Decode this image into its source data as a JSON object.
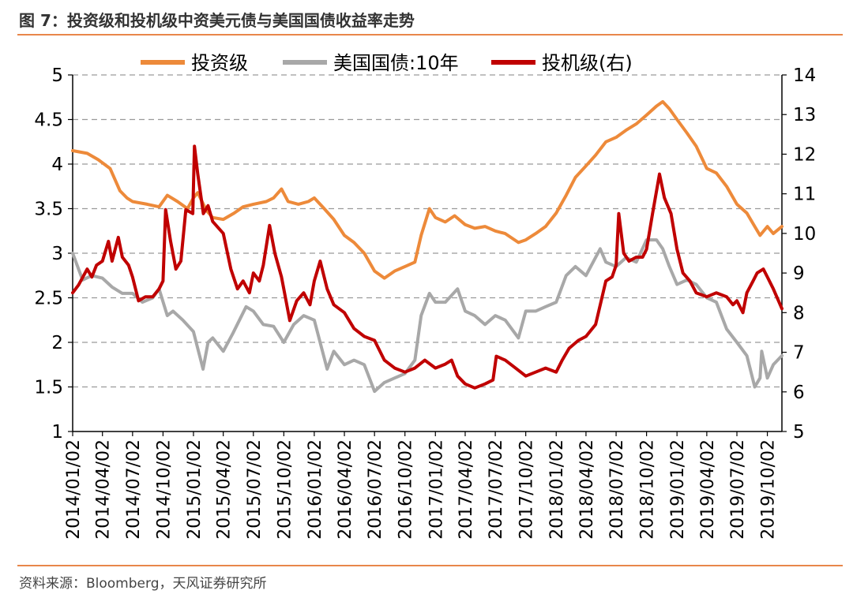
{
  "figure": {
    "title": "图 7：投资级和投机级中资美元债与美国国债收益率走势",
    "source": "资料来源：Bloomberg，天风证券研究所"
  },
  "colors": {
    "ig": "#ed8a3a",
    "ust": "#a8a8a8",
    "hy": "#c00000",
    "rule": "#e8874a",
    "grid": "#9a9a9a"
  },
  "chart_data": {
    "type": "line",
    "title": "投资级和投机级中资美元债与美国国债收益率走势",
    "legend": [
      "投资级",
      "美国国债:10年",
      "投机级(右)"
    ],
    "y_left": {
      "ylim": [
        1,
        5
      ],
      "ticks": [
        "1",
        "1.5",
        "2",
        "2.5",
        "3",
        "3.5",
        "4",
        "4.5",
        "5"
      ]
    },
    "y_right": {
      "ylim": [
        5,
        14
      ],
      "ticks": [
        "5",
        "6",
        "7",
        "8",
        "9",
        "10",
        "11",
        "12",
        "13",
        "14"
      ]
    },
    "x_start": "2014-01-02",
    "x_end": "2019-11-15",
    "x_ticks": [
      "2014/01/02",
      "2014/04/02",
      "2014/07/02",
      "2014/10/02",
      "2015/01/02",
      "2015/04/02",
      "2015/07/02",
      "2015/10/02",
      "2016/01/02",
      "2016/04/02",
      "2016/07/02",
      "2016/10/02",
      "2017/01/02",
      "2017/04/02",
      "2017/07/02",
      "2017/10/02",
      "2018/01/02",
      "2018/04/02",
      "2018/07/02",
      "2018/10/02",
      "2019/01/02",
      "2019/04/02",
      "2019/07/02",
      "2019/10/02"
    ],
    "series": [
      {
        "name": "投资级",
        "axis": "left",
        "color": "#ed8a3a",
        "points": [
          [
            "2014-01-02",
            4.15
          ],
          [
            "2014-02-15",
            4.12
          ],
          [
            "2014-03-20",
            4.05
          ],
          [
            "2014-04-25",
            3.95
          ],
          [
            "2014-05-25",
            3.7
          ],
          [
            "2014-06-15",
            3.62
          ],
          [
            "2014-07-02",
            3.58
          ],
          [
            "2014-08-15",
            3.55
          ],
          [
            "2014-09-20",
            3.52
          ],
          [
            "2014-10-15",
            3.65
          ],
          [
            "2014-11-15",
            3.58
          ],
          [
            "2014-12-15",
            3.5
          ],
          [
            "2015-01-02",
            3.62
          ],
          [
            "2015-01-15",
            3.68
          ],
          [
            "2015-02-10",
            3.48
          ],
          [
            "2015-03-01",
            3.4
          ],
          [
            "2015-04-02",
            3.38
          ],
          [
            "2015-05-05",
            3.45
          ],
          [
            "2015-06-01",
            3.52
          ],
          [
            "2015-07-02",
            3.55
          ],
          [
            "2015-08-10",
            3.58
          ],
          [
            "2015-09-01",
            3.62
          ],
          [
            "2015-09-25",
            3.72
          ],
          [
            "2015-10-15",
            3.58
          ],
          [
            "2015-11-15",
            3.55
          ],
          [
            "2015-12-15",
            3.58
          ],
          [
            "2016-01-02",
            3.62
          ],
          [
            "2016-02-01",
            3.5
          ],
          [
            "2016-03-01",
            3.38
          ],
          [
            "2016-04-02",
            3.2
          ],
          [
            "2016-05-01",
            3.12
          ],
          [
            "2016-06-01",
            3.0
          ],
          [
            "2016-07-02",
            2.8
          ],
          [
            "2016-08-01",
            2.72
          ],
          [
            "2016-09-01",
            2.8
          ],
          [
            "2016-10-02",
            2.85
          ],
          [
            "2016-11-01",
            2.9
          ],
          [
            "2016-11-20",
            3.2
          ],
          [
            "2016-12-15",
            3.5
          ],
          [
            "2017-01-02",
            3.4
          ],
          [
            "2017-02-01",
            3.35
          ],
          [
            "2017-03-01",
            3.42
          ],
          [
            "2017-04-02",
            3.32
          ],
          [
            "2017-05-01",
            3.28
          ],
          [
            "2017-06-01",
            3.3
          ],
          [
            "2017-07-02",
            3.25
          ],
          [
            "2017-08-01",
            3.22
          ],
          [
            "2017-09-10",
            3.12
          ],
          [
            "2017-10-02",
            3.15
          ],
          [
            "2017-11-01",
            3.22
          ],
          [
            "2017-12-01",
            3.3
          ],
          [
            "2018-01-02",
            3.45
          ],
          [
            "2018-02-01",
            3.65
          ],
          [
            "2018-03-01",
            3.85
          ],
          [
            "2018-04-02",
            3.98
          ],
          [
            "2018-05-01",
            4.1
          ],
          [
            "2018-06-01",
            4.25
          ],
          [
            "2018-07-02",
            4.3
          ],
          [
            "2018-08-01",
            4.38
          ],
          [
            "2018-09-01",
            4.45
          ],
          [
            "2018-10-02",
            4.55
          ],
          [
            "2018-11-01",
            4.65
          ],
          [
            "2018-11-20",
            4.7
          ],
          [
            "2018-12-10",
            4.62
          ],
          [
            "2019-01-02",
            4.5
          ],
          [
            "2019-02-01",
            4.35
          ],
          [
            "2019-03-01",
            4.2
          ],
          [
            "2019-04-02",
            3.95
          ],
          [
            "2019-05-01",
            3.9
          ],
          [
            "2019-06-01",
            3.75
          ],
          [
            "2019-07-02",
            3.55
          ],
          [
            "2019-08-01",
            3.45
          ],
          [
            "2019-08-25",
            3.3
          ],
          [
            "2019-09-10",
            3.2
          ],
          [
            "2019-10-02",
            3.3
          ],
          [
            "2019-10-20",
            3.22
          ],
          [
            "2019-11-15",
            3.3
          ]
        ]
      },
      {
        "name": "美国国债:10年",
        "axis": "left",
        "color": "#a8a8a8",
        "points": [
          [
            "2014-01-02",
            3.0
          ],
          [
            "2014-02-01",
            2.7
          ],
          [
            "2014-03-01",
            2.75
          ],
          [
            "2014-04-02",
            2.72
          ],
          [
            "2014-05-01",
            2.62
          ],
          [
            "2014-06-01",
            2.55
          ],
          [
            "2014-07-02",
            2.55
          ],
          [
            "2014-08-01",
            2.45
          ],
          [
            "2014-09-01",
            2.5
          ],
          [
            "2014-09-20",
            2.6
          ],
          [
            "2014-10-15",
            2.3
          ],
          [
            "2014-11-01",
            2.35
          ],
          [
            "2014-12-01",
            2.25
          ],
          [
            "2015-01-02",
            2.12
          ],
          [
            "2015-01-31",
            1.7
          ],
          [
            "2015-02-15",
            2.0
          ],
          [
            "2015-03-01",
            2.05
          ],
          [
            "2015-04-02",
            1.9
          ],
          [
            "2015-05-01",
            2.1
          ],
          [
            "2015-06-10",
            2.4
          ],
          [
            "2015-07-02",
            2.35
          ],
          [
            "2015-08-01",
            2.2
          ],
          [
            "2015-09-01",
            2.18
          ],
          [
            "2015-10-02",
            2.0
          ],
          [
            "2015-11-01",
            2.2
          ],
          [
            "2015-12-01",
            2.3
          ],
          [
            "2016-01-02",
            2.25
          ],
          [
            "2016-02-10",
            1.7
          ],
          [
            "2016-03-01",
            1.9
          ],
          [
            "2016-04-02",
            1.75
          ],
          [
            "2016-05-01",
            1.8
          ],
          [
            "2016-06-01",
            1.75
          ],
          [
            "2016-07-02",
            1.45
          ],
          [
            "2016-08-01",
            1.55
          ],
          [
            "2016-09-01",
            1.6
          ],
          [
            "2016-10-02",
            1.65
          ],
          [
            "2016-11-01",
            1.8
          ],
          [
            "2016-11-20",
            2.3
          ],
          [
            "2016-12-15",
            2.55
          ],
          [
            "2017-01-02",
            2.45
          ],
          [
            "2017-02-01",
            2.45
          ],
          [
            "2017-03-10",
            2.6
          ],
          [
            "2017-04-02",
            2.35
          ],
          [
            "2017-05-01",
            2.3
          ],
          [
            "2017-06-01",
            2.2
          ],
          [
            "2017-07-02",
            2.3
          ],
          [
            "2017-08-01",
            2.25
          ],
          [
            "2017-09-10",
            2.05
          ],
          [
            "2017-10-02",
            2.35
          ],
          [
            "2017-11-01",
            2.35
          ],
          [
            "2017-12-01",
            2.4
          ],
          [
            "2018-01-02",
            2.45
          ],
          [
            "2018-02-01",
            2.75
          ],
          [
            "2018-03-01",
            2.85
          ],
          [
            "2018-04-02",
            2.75
          ],
          [
            "2018-05-15",
            3.05
          ],
          [
            "2018-06-01",
            2.9
          ],
          [
            "2018-07-02",
            2.85
          ],
          [
            "2018-08-01",
            2.95
          ],
          [
            "2018-09-01",
            2.9
          ],
          [
            "2018-10-02",
            3.15
          ],
          [
            "2018-11-01",
            3.15
          ],
          [
            "2018-11-20",
            3.05
          ],
          [
            "2018-12-10",
            2.85
          ],
          [
            "2019-01-02",
            2.65
          ],
          [
            "2019-02-01",
            2.7
          ],
          [
            "2019-03-01",
            2.65
          ],
          [
            "2019-04-02",
            2.5
          ],
          [
            "2019-05-01",
            2.45
          ],
          [
            "2019-06-01",
            2.15
          ],
          [
            "2019-07-02",
            2.0
          ],
          [
            "2019-08-01",
            1.85
          ],
          [
            "2019-08-25",
            1.5
          ],
          [
            "2019-09-10",
            1.6
          ],
          [
            "2019-09-15",
            1.9
          ],
          [
            "2019-10-02",
            1.6
          ],
          [
            "2019-10-20",
            1.75
          ],
          [
            "2019-11-15",
            1.85
          ]
        ]
      },
      {
        "name": "投机级(右)",
        "axis": "right",
        "color": "#c00000",
        "points": [
          [
            "2014-01-02",
            8.5
          ],
          [
            "2014-01-20",
            8.7
          ],
          [
            "2014-02-15",
            9.1
          ],
          [
            "2014-03-01",
            8.9
          ],
          [
            "2014-03-15",
            9.2
          ],
          [
            "2014-04-02",
            9.3
          ],
          [
            "2014-04-20",
            9.8
          ],
          [
            "2014-05-01",
            9.3
          ],
          [
            "2014-05-20",
            9.9
          ],
          [
            "2014-06-01",
            9.4
          ],
          [
            "2014-06-20",
            9.2
          ],
          [
            "2014-07-02",
            8.9
          ],
          [
            "2014-07-20",
            8.3
          ],
          [
            "2014-08-10",
            8.4
          ],
          [
            "2014-09-01",
            8.4
          ],
          [
            "2014-09-20",
            8.6
          ],
          [
            "2014-10-02",
            8.8
          ],
          [
            "2014-10-10",
            10.6
          ],
          [
            "2014-10-25",
            9.8
          ],
          [
            "2014-11-10",
            9.1
          ],
          [
            "2014-11-25",
            9.3
          ],
          [
            "2014-12-10",
            10.6
          ],
          [
            "2014-12-31",
            10.5
          ],
          [
            "2015-01-05",
            12.2
          ],
          [
            "2015-01-15",
            11.5
          ],
          [
            "2015-02-01",
            10.5
          ],
          [
            "2015-02-15",
            10.7
          ],
          [
            "2015-03-01",
            10.3
          ],
          [
            "2015-04-02",
            10.0
          ],
          [
            "2015-04-25",
            9.1
          ],
          [
            "2015-05-15",
            8.6
          ],
          [
            "2015-06-01",
            8.8
          ],
          [
            "2015-06-20",
            8.5
          ],
          [
            "2015-07-02",
            9.0
          ],
          [
            "2015-07-20",
            8.8
          ],
          [
            "2015-08-01",
            9.2
          ],
          [
            "2015-08-20",
            10.2
          ],
          [
            "2015-09-05",
            9.5
          ],
          [
            "2015-09-25",
            8.9
          ],
          [
            "2015-10-02",
            8.6
          ],
          [
            "2015-10-20",
            7.8
          ],
          [
            "2015-11-10",
            8.3
          ],
          [
            "2015-12-01",
            8.5
          ],
          [
            "2015-12-20",
            8.2
          ],
          [
            "2016-01-02",
            8.8
          ],
          [
            "2016-01-20",
            9.3
          ],
          [
            "2016-02-10",
            8.6
          ],
          [
            "2016-03-01",
            8.2
          ],
          [
            "2016-04-02",
            8.0
          ],
          [
            "2016-05-01",
            7.6
          ],
          [
            "2016-06-01",
            7.4
          ],
          [
            "2016-07-02",
            7.3
          ],
          [
            "2016-08-01",
            6.8
          ],
          [
            "2016-09-01",
            6.6
          ],
          [
            "2016-10-02",
            6.5
          ],
          [
            "2016-11-01",
            6.6
          ],
          [
            "2016-12-01",
            6.8
          ],
          [
            "2017-01-02",
            6.6
          ],
          [
            "2017-02-01",
            6.7
          ],
          [
            "2017-02-20",
            6.8
          ],
          [
            "2017-03-10",
            6.4
          ],
          [
            "2017-04-02",
            6.2
          ],
          [
            "2017-05-01",
            6.1
          ],
          [
            "2017-06-01",
            6.2
          ],
          [
            "2017-06-25",
            6.3
          ],
          [
            "2017-07-05",
            6.9
          ],
          [
            "2017-08-01",
            6.8
          ],
          [
            "2017-09-01",
            6.6
          ],
          [
            "2017-10-02",
            6.4
          ],
          [
            "2017-11-01",
            6.5
          ],
          [
            "2017-12-01",
            6.6
          ],
          [
            "2018-01-02",
            6.5
          ],
          [
            "2018-01-20",
            6.8
          ],
          [
            "2018-02-10",
            7.1
          ],
          [
            "2018-03-10",
            7.3
          ],
          [
            "2018-04-02",
            7.4
          ],
          [
            "2018-05-01",
            7.7
          ],
          [
            "2018-06-01",
            8.8
          ],
          [
            "2018-06-20",
            8.9
          ],
          [
            "2018-07-02",
            9.2
          ],
          [
            "2018-07-10",
            10.5
          ],
          [
            "2018-07-25",
            9.5
          ],
          [
            "2018-08-10",
            9.3
          ],
          [
            "2018-09-01",
            9.4
          ],
          [
            "2018-09-20",
            9.4
          ],
          [
            "2018-10-02",
            9.6
          ],
          [
            "2018-10-20",
            10.5
          ],
          [
            "2018-11-10",
            11.5
          ],
          [
            "2018-11-25",
            10.9
          ],
          [
            "2018-12-15",
            10.5
          ],
          [
            "2019-01-02",
            9.6
          ],
          [
            "2019-01-20",
            9.0
          ],
          [
            "2019-02-10",
            8.8
          ],
          [
            "2019-03-01",
            8.5
          ],
          [
            "2019-04-02",
            8.4
          ],
          [
            "2019-05-01",
            8.5
          ],
          [
            "2019-06-01",
            8.4
          ],
          [
            "2019-06-20",
            8.2
          ],
          [
            "2019-07-02",
            8.3
          ],
          [
            "2019-07-20",
            8.0
          ],
          [
            "2019-08-01",
            8.5
          ],
          [
            "2019-08-20",
            8.8
          ],
          [
            "2019-09-01",
            9.0
          ],
          [
            "2019-09-20",
            9.1
          ],
          [
            "2019-10-02",
            8.9
          ],
          [
            "2019-10-20",
            8.6
          ],
          [
            "2019-11-15",
            8.1
          ]
        ]
      }
    ]
  }
}
